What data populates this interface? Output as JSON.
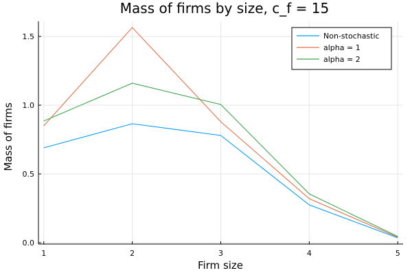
{
  "chart_data": {
    "type": "line",
    "title": "Mass of firms by size, c_f = 15",
    "xlabel": "Firm size",
    "ylabel": "Mass of firms",
    "x": [
      1,
      2,
      3,
      4,
      5
    ],
    "xlim": [
      0.94,
      5.06
    ],
    "ylim": [
      -0.01,
      1.61
    ],
    "xticks": [
      "1",
      "2",
      "3",
      "4",
      "5"
    ],
    "yticks": [
      "0.0",
      "0.5",
      "1.0",
      "1.5"
    ],
    "ytick_values": [
      0.0,
      0.5,
      1.0,
      1.5
    ],
    "grid": true,
    "legend_position": "top-right",
    "series": [
      {
        "name": "Non-stochastic",
        "color": "#009AFA",
        "values": [
          0.69,
          0.865,
          0.78,
          0.275,
          0.035
        ]
      },
      {
        "name": "alpha = 1",
        "color": "#E26F46",
        "values": [
          0.85,
          1.565,
          0.88,
          0.32,
          0.04
        ]
      },
      {
        "name": "alpha = 2",
        "color": "#3EA44E",
        "values": [
          0.885,
          1.16,
          1.005,
          0.355,
          0.045
        ]
      }
    ]
  }
}
